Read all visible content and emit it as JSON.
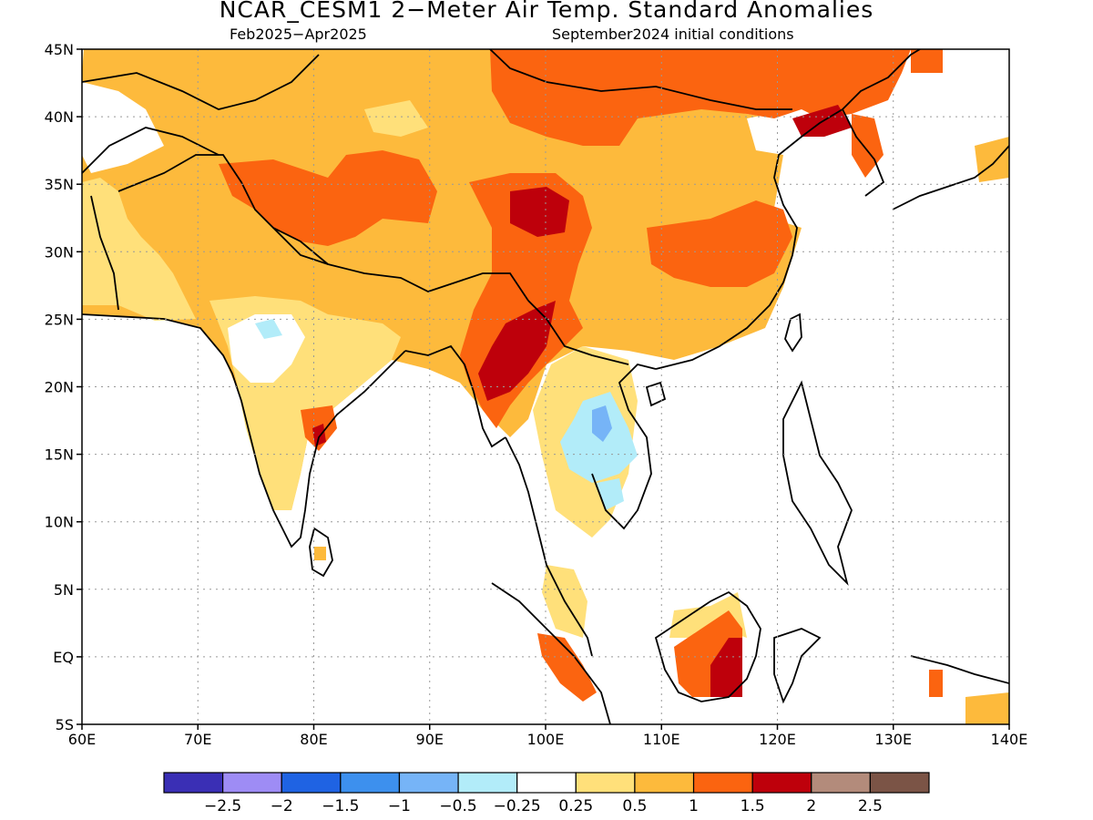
{
  "title": "NCAR_CESM1 2−Meter Air Temp. Standard Anomalies",
  "subtitle_left": "Feb2025−Apr2025",
  "subtitle_right": "September2024 initial conditions",
  "map": {
    "lon_range": [
      60,
      140
    ],
    "lat_range": [
      -5,
      45
    ],
    "lon_ticks": [
      "60E",
      "70E",
      "80E",
      "90E",
      "100E",
      "110E",
      "120E",
      "130E",
      "140E"
    ],
    "lat_ticks": [
      "5S",
      "EQ",
      "5N",
      "10N",
      "15N",
      "20N",
      "25N",
      "30N",
      "35N",
      "40N",
      "45N"
    ],
    "gridlines": "dotted"
  },
  "colorbar": {
    "colors": [
      "#3a2fb5",
      "#9e8cf5",
      "#1f63e3",
      "#3d90ee",
      "#76b4f7",
      "#b2ecf9",
      "#ffffff",
      "#ffe07a",
      "#fdba3c",
      "#fb6410",
      "#be000b",
      "#b38b7b",
      "#7b5446"
    ],
    "labels": [
      "−2.5",
      "−2",
      "−1.5",
      "−1",
      "−0.5",
      "−0.25",
      "0.25",
      "0.5",
      "1",
      "1.5",
      "2",
      "2.5"
    ]
  },
  "anomaly_regions": [
    {
      "level": "0.5 to 1",
      "color": "#fdba3c"
    },
    {
      "level": "1 to 1.5",
      "color": "#fb6410"
    },
    {
      "level": "1.5 to 2",
      "color": "#be000b"
    },
    {
      "level": "0.25 to 0.5",
      "color": "#ffe07a"
    },
    {
      "level": "-0.5 to -0.25",
      "color": "#b2ecf9"
    },
    {
      "level": "-1 to -0.5",
      "color": "#76b4f7"
    }
  ]
}
